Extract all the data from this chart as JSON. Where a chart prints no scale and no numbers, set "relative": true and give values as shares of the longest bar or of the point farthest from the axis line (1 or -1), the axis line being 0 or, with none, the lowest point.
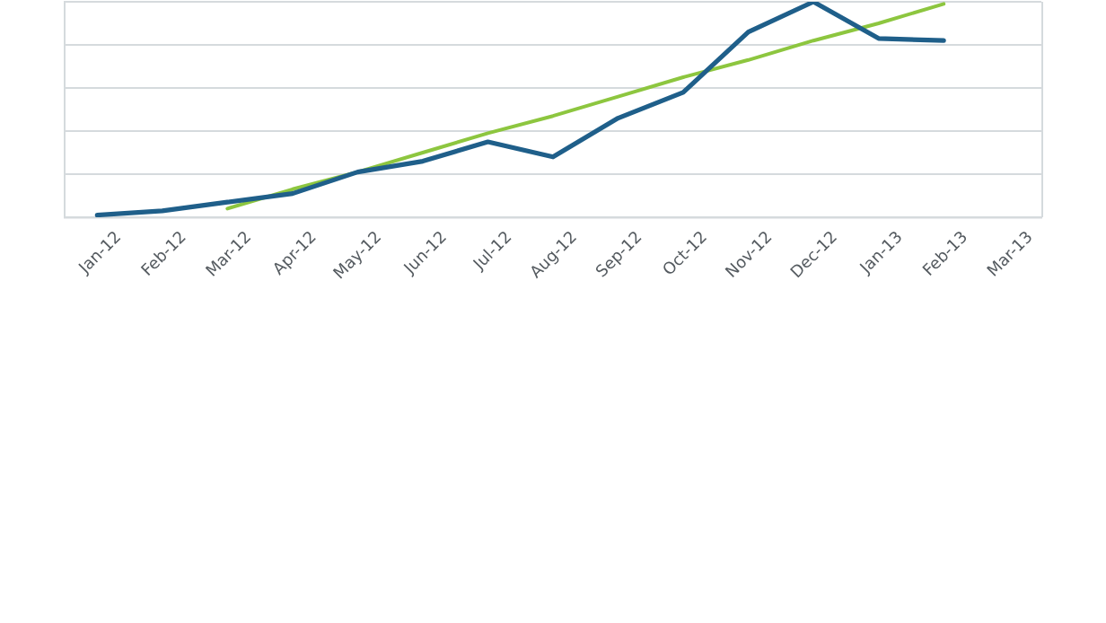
{
  "chart_data": {
    "type": "line",
    "relative": true,
    "grid": "y",
    "legend": false,
    "marker": "none",
    "line_style": "solid",
    "categories": [
      "Jan-12",
      "Feb-12",
      "Mar-12",
      "Apr-12",
      "May-12",
      "Jun-12",
      "Jul-12",
      "Aug-12",
      "Sep-12",
      "Oct-12",
      "Nov-12",
      "Dec-12",
      "Jan-13",
      "Feb-13",
      "Mar-13"
    ],
    "series": [
      {
        "color": "#1f5f8a",
        "values": [
          0.01,
          0.03,
          0.07,
          0.11,
          0.21,
          0.26,
          0.35,
          0.28,
          0.46,
          0.58,
          0.86,
          1,
          0.83,
          0.82,
          null
        ]
      },
      {
        "color": "#8dc63f",
        "values": [
          null,
          null,
          0.04,
          0.13,
          0.21,
          0.3,
          0.39,
          0.47,
          0.56,
          0.65,
          0.73,
          0.82,
          0.9,
          0.99,
          null
        ]
      }
    ]
  }
}
